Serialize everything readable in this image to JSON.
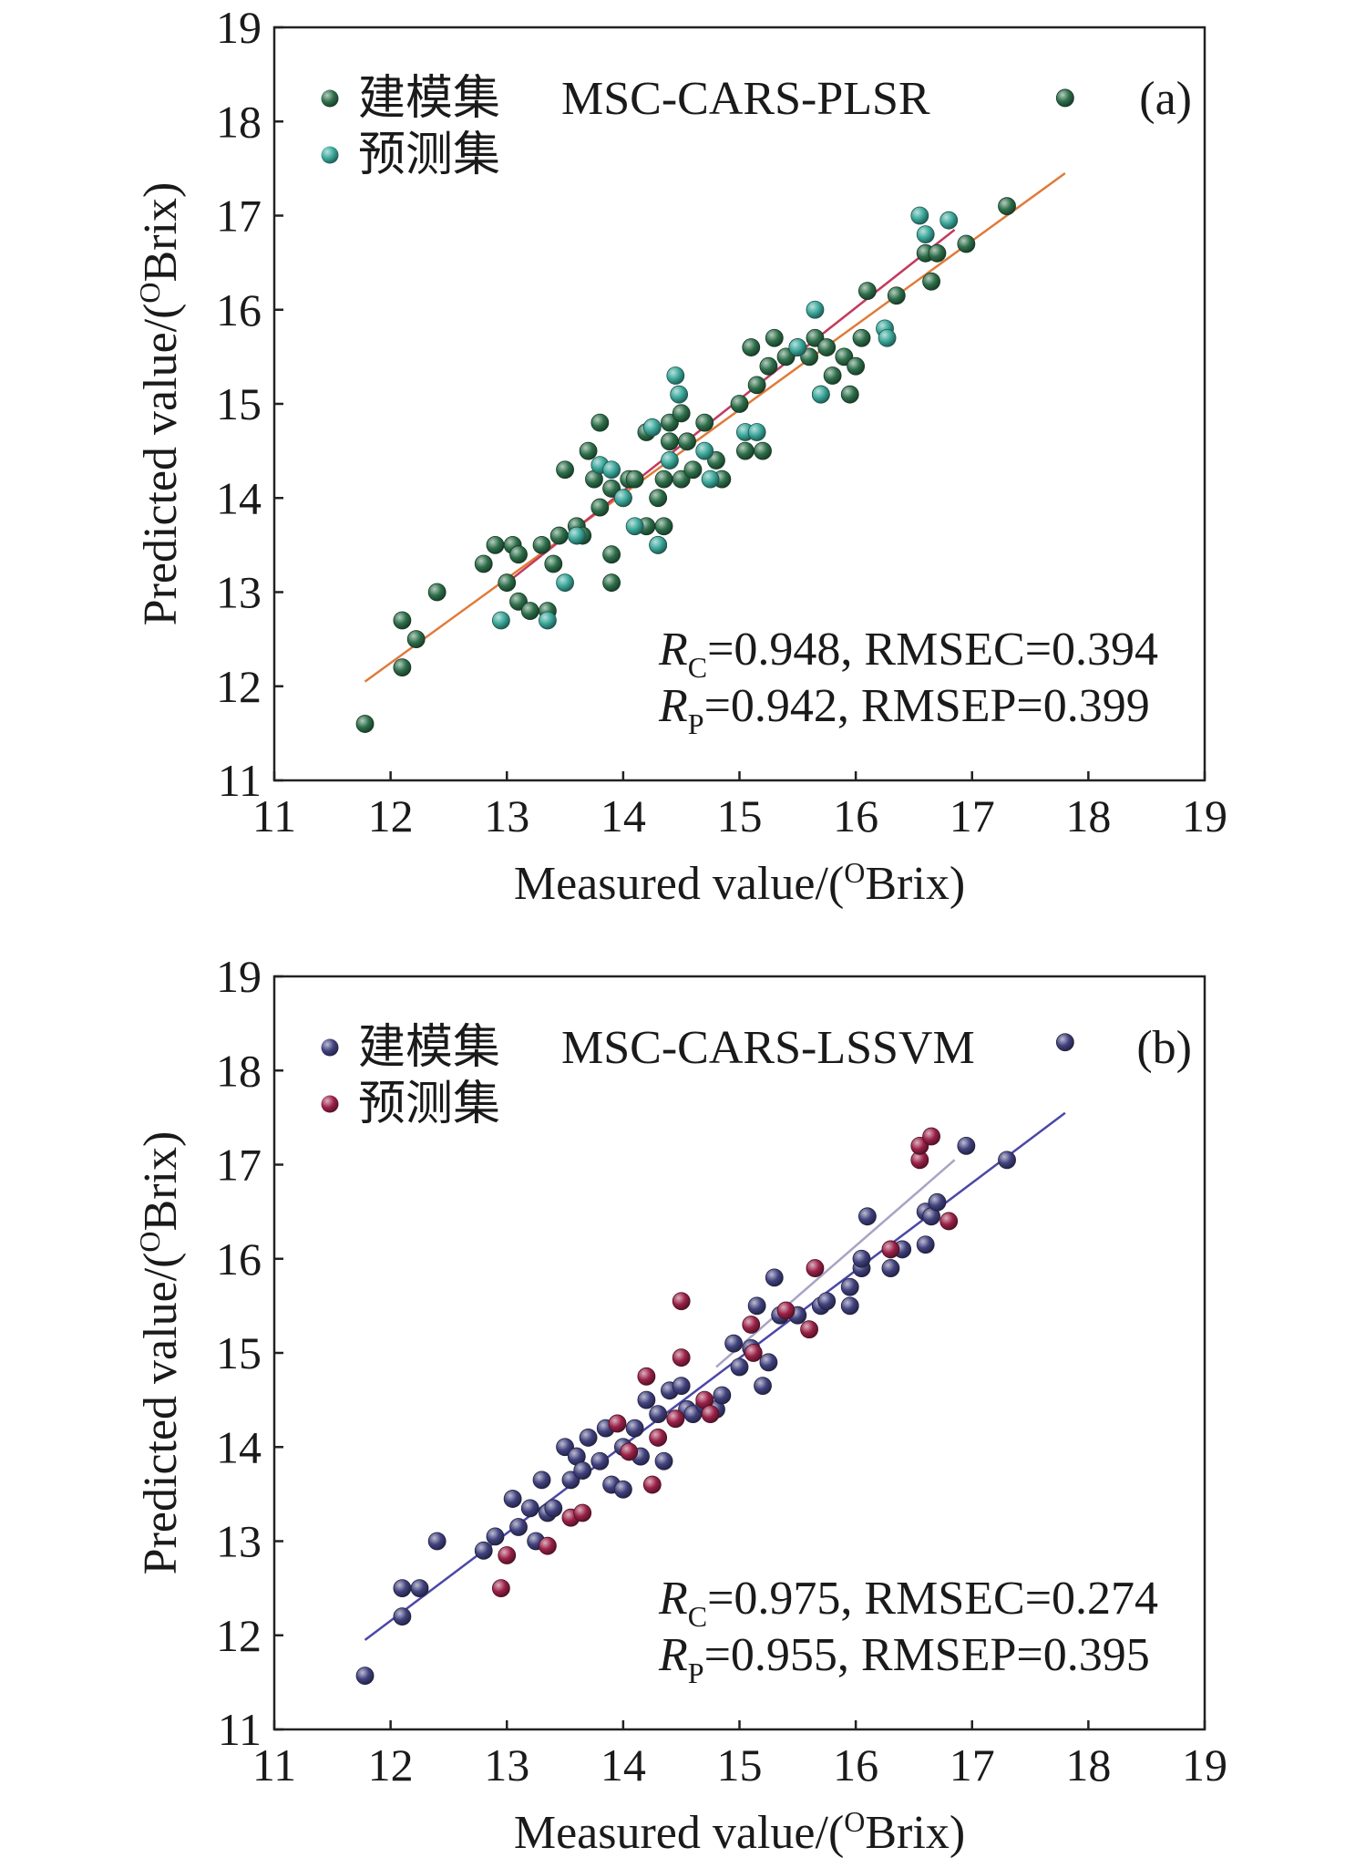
{
  "colors": {
    "a_train": "#2e6f4a",
    "a_pred": "#3aa79a",
    "a_fit_train": "#e07b39",
    "a_fit_pred": "#c23b5e",
    "b_train": "#41417f",
    "b_pred": "#9b2148",
    "b_fit_train": "#4b47a8",
    "b_fit_pred": "#a9a3c4"
  },
  "chart_data": [
    {
      "type": "scatter",
      "panel": "(a)",
      "title": "MSC-CARS-PLSR",
      "xlabel": "Measured value/(",
      "ylabel": "Predicted value/(",
      "axis_unit_sup": "O",
      "axis_unit_tail": "Brix)",
      "xlim": [
        11,
        19
      ],
      "ylim": [
        11,
        19
      ],
      "xticks": [
        "11",
        "12",
        "13",
        "14",
        "15",
        "16",
        "17",
        "18",
        "19"
      ],
      "yticks": [
        "11",
        "12",
        "13",
        "14",
        "15",
        "16",
        "17",
        "18",
        "19"
      ],
      "grid": false,
      "legend_position": "top-left",
      "metrics": [
        {
          "sym": "R",
          "sub": "C",
          "text": "=0.948, RMSEC=0.394"
        },
        {
          "sym": "R",
          "sub": "P",
          "text": "=0.942, RMSEP=0.399"
        }
      ],
      "series": [
        {
          "name": "建模集",
          "color_key": "a_train",
          "points": [
            [
              11.78,
              11.6
            ],
            [
              12.1,
              12.7
            ],
            [
              12.1,
              12.2
            ],
            [
              12.22,
              12.5
            ],
            [
              12.4,
              13.0
            ],
            [
              12.8,
              13.3
            ],
            [
              12.9,
              13.5
            ],
            [
              13.0,
              13.1
            ],
            [
              13.05,
              13.5
            ],
            [
              13.1,
              13.4
            ],
            [
              13.1,
              12.9
            ],
            [
              13.2,
              12.8
            ],
            [
              13.3,
              13.5
            ],
            [
              13.35,
              12.8
            ],
            [
              13.4,
              13.3
            ],
            [
              13.45,
              13.6
            ],
            [
              13.5,
              14.3
            ],
            [
              13.6,
              13.7
            ],
            [
              13.65,
              13.6
            ],
            [
              13.7,
              14.5
            ],
            [
              13.75,
              14.2
            ],
            [
              13.8,
              14.8
            ],
            [
              13.8,
              13.9
            ],
            [
              13.9,
              14.1
            ],
            [
              13.9,
              13.4
            ],
            [
              13.9,
              13.1
            ],
            [
              14.0,
              14.0
            ],
            [
              14.05,
              14.2
            ],
            [
              14.1,
              14.2
            ],
            [
              14.2,
              14.7
            ],
            [
              14.2,
              13.7
            ],
            [
              14.3,
              13.5
            ],
            [
              14.3,
              14.0
            ],
            [
              14.35,
              14.2
            ],
            [
              14.35,
              13.7
            ],
            [
              14.4,
              14.6
            ],
            [
              14.4,
              14.8
            ],
            [
              14.5,
              14.9
            ],
            [
              14.5,
              14.2
            ],
            [
              14.55,
              14.6
            ],
            [
              14.6,
              14.3
            ],
            [
              14.7,
              14.8
            ],
            [
              14.8,
              14.4
            ],
            [
              14.85,
              14.2
            ],
            [
              15.0,
              15.0
            ],
            [
              15.05,
              14.5
            ],
            [
              15.1,
              15.6
            ],
            [
              15.15,
              15.2
            ],
            [
              15.2,
              14.5
            ],
            [
              15.25,
              15.4
            ],
            [
              15.3,
              15.7
            ],
            [
              15.4,
              15.5
            ],
            [
              15.5,
              15.6
            ],
            [
              15.6,
              15.5
            ],
            [
              15.65,
              15.7
            ],
            [
              15.7,
              15.1
            ],
            [
              15.75,
              15.6
            ],
            [
              15.8,
              15.3
            ],
            [
              15.9,
              15.5
            ],
            [
              15.95,
              15.1
            ],
            [
              16.0,
              15.4
            ],
            [
              16.05,
              15.7
            ],
            [
              16.1,
              16.2
            ],
            [
              16.35,
              16.15
            ],
            [
              16.6,
              16.6
            ],
            [
              16.65,
              16.3
            ],
            [
              16.7,
              16.6
            ],
            [
              16.95,
              16.7
            ],
            [
              17.3,
              17.1
            ],
            [
              17.8,
              18.25
            ]
          ]
        },
        {
          "name": "预测集",
          "color_key": "a_pred",
          "points": [
            [
              12.95,
              12.7
            ],
            [
              13.35,
              12.7
            ],
            [
              13.5,
              13.1
            ],
            [
              13.6,
              13.6
            ],
            [
              13.8,
              14.35
            ],
            [
              13.9,
              14.3
            ],
            [
              14.0,
              14.0
            ],
            [
              14.1,
              13.7
            ],
            [
              14.25,
              14.75
            ],
            [
              14.3,
              13.5
            ],
            [
              14.4,
              14.4
            ],
            [
              14.45,
              15.3
            ],
            [
              14.48,
              15.1
            ],
            [
              14.7,
              14.5
            ],
            [
              14.75,
              14.2
            ],
            [
              15.05,
              14.7
            ],
            [
              15.15,
              14.7
            ],
            [
              15.5,
              15.6
            ],
            [
              15.65,
              16.0
            ],
            [
              15.7,
              15.1
            ],
            [
              16.25,
              15.8
            ],
            [
              16.27,
              15.7
            ],
            [
              16.55,
              17.0
            ],
            [
              16.6,
              16.8
            ],
            [
              16.8,
              16.95
            ]
          ]
        }
      ],
      "fit_lines": [
        {
          "color_key": "a_fit_train",
          "x": [
            11.78,
            17.8
          ],
          "y": [
            12.05,
            17.45
          ]
        },
        {
          "color_key": "a_fit_pred",
          "x": [
            12.95,
            16.85
          ],
          "y": [
            13.05,
            16.85
          ]
        }
      ]
    },
    {
      "type": "scatter",
      "panel": "(b)",
      "title": "MSC-CARS-LSSVM",
      "xlabel": "Measured value/(",
      "ylabel": "Predicted value/(",
      "axis_unit_sup": "O",
      "axis_unit_tail": "Brix)",
      "xlim": [
        11,
        19
      ],
      "ylim": [
        11,
        19
      ],
      "xticks": [
        "11",
        "12",
        "13",
        "14",
        "15",
        "16",
        "17",
        "18",
        "19"
      ],
      "yticks": [
        "11",
        "12",
        "13",
        "14",
        "15",
        "16",
        "17",
        "18",
        "19"
      ],
      "grid": false,
      "legend_position": "top-left",
      "metrics": [
        {
          "sym": "R",
          "sub": "C",
          "text": "=0.975, RMSEC=0.274"
        },
        {
          "sym": "R",
          "sub": "P",
          "text": "=0.955, RMSEP=0.395"
        }
      ],
      "series": [
        {
          "name": "建模集",
          "color_key": "b_train",
          "points": [
            [
              11.78,
              11.57
            ],
            [
              12.1,
              12.5
            ],
            [
              12.1,
              12.2
            ],
            [
              12.25,
              12.5
            ],
            [
              12.4,
              13.0
            ],
            [
              12.8,
              12.9
            ],
            [
              12.9,
              13.05
            ],
            [
              13.05,
              13.45
            ],
            [
              13.1,
              13.15
            ],
            [
              13.2,
              13.35
            ],
            [
              13.25,
              13.0
            ],
            [
              13.3,
              13.65
            ],
            [
              13.35,
              13.3
            ],
            [
              13.4,
              13.35
            ],
            [
              13.5,
              14.0
            ],
            [
              13.55,
              13.65
            ],
            [
              13.6,
              13.9
            ],
            [
              13.65,
              13.75
            ],
            [
              13.7,
              14.1
            ],
            [
              13.8,
              13.85
            ],
            [
              13.85,
              14.2
            ],
            [
              13.9,
              13.6
            ],
            [
              14.0,
              13.55
            ],
            [
              14.0,
              14.0
            ],
            [
              14.1,
              14.2
            ],
            [
              14.15,
              13.9
            ],
            [
              14.2,
              14.5
            ],
            [
              14.3,
              14.35
            ],
            [
              14.35,
              13.85
            ],
            [
              14.4,
              14.6
            ],
            [
              14.45,
              14.3
            ],
            [
              14.5,
              14.65
            ],
            [
              14.55,
              14.4
            ],
            [
              14.6,
              14.35
            ],
            [
              14.7,
              14.45
            ],
            [
              14.8,
              14.4
            ],
            [
              14.85,
              14.55
            ],
            [
              14.95,
              15.1
            ],
            [
              15.0,
              14.85
            ],
            [
              15.1,
              15.05
            ],
            [
              15.15,
              15.5
            ],
            [
              15.2,
              14.65
            ],
            [
              15.25,
              14.9
            ],
            [
              15.3,
              15.8
            ],
            [
              15.35,
              15.4
            ],
            [
              15.5,
              15.4
            ],
            [
              15.7,
              15.5
            ],
            [
              15.75,
              15.55
            ],
            [
              15.95,
              15.7
            ],
            [
              15.95,
              15.5
            ],
            [
              16.05,
              15.9
            ],
            [
              16.05,
              16.0
            ],
            [
              16.1,
              16.45
            ],
            [
              16.3,
              15.9
            ],
            [
              16.4,
              16.1
            ],
            [
              16.6,
              16.15
            ],
            [
              16.6,
              16.5
            ],
            [
              16.65,
              16.45
            ],
            [
              16.7,
              16.6
            ],
            [
              16.95,
              17.2
            ],
            [
              17.3,
              17.05
            ],
            [
              17.8,
              18.3
            ]
          ]
        },
        {
          "name": "预测集",
          "color_key": "b_pred",
          "points": [
            [
              12.95,
              12.5
            ],
            [
              13.0,
              12.85
            ],
            [
              13.35,
              12.95
            ],
            [
              13.55,
              13.25
            ],
            [
              13.65,
              13.3
            ],
            [
              13.95,
              14.25
            ],
            [
              14.05,
              13.95
            ],
            [
              14.2,
              14.75
            ],
            [
              14.25,
              13.6
            ],
            [
              14.3,
              14.1
            ],
            [
              14.45,
              14.3
            ],
            [
              14.5,
              14.95
            ],
            [
              14.5,
              15.55
            ],
            [
              14.7,
              14.5
            ],
            [
              14.75,
              14.35
            ],
            [
              15.1,
              15.3
            ],
            [
              15.12,
              15.0
            ],
            [
              15.4,
              15.45
            ],
            [
              15.6,
              15.25
            ],
            [
              15.65,
              15.9
            ],
            [
              16.3,
              16.1
            ],
            [
              16.55,
              17.05
            ],
            [
              16.55,
              17.2
            ],
            [
              16.65,
              17.3
            ],
            [
              16.8,
              16.4
            ]
          ]
        }
      ],
      "fit_lines": [
        {
          "color_key": "b_fit_train",
          "x": [
            11.78,
            17.8
          ],
          "y": [
            11.95,
            17.55
          ]
        },
        {
          "color_key": "b_fit_pred",
          "x": [
            14.8,
            16.85
          ],
          "y": [
            14.85,
            17.05
          ]
        }
      ]
    }
  ]
}
